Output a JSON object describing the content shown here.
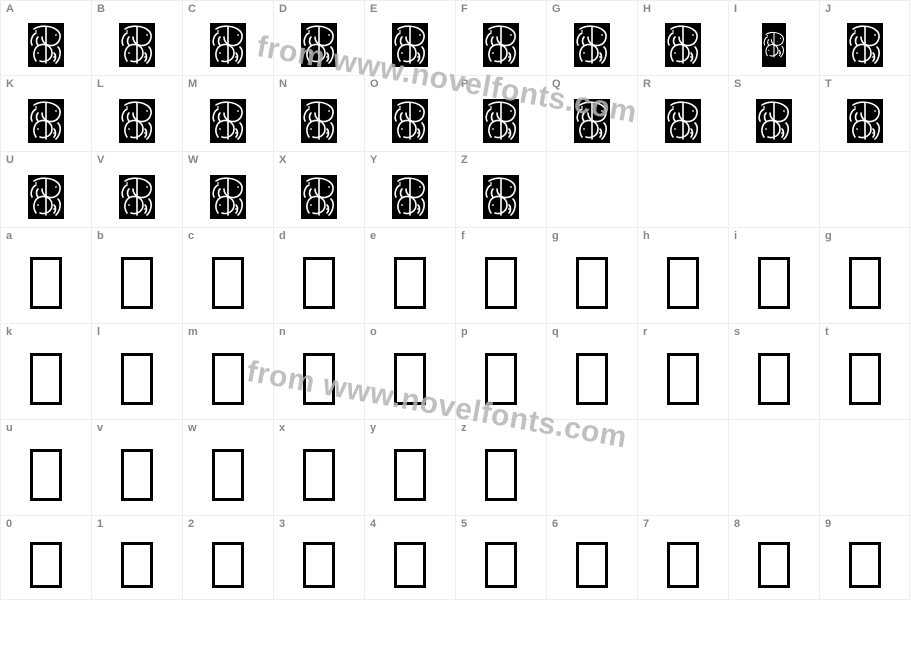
{
  "watermark_text": "from www.novelfonts.com",
  "colors": {
    "border": "#eeeeee",
    "label": "#888888",
    "glyph_bg": "#000000",
    "glyph_stroke": "#ffffff",
    "watermark": "#b6b6b6",
    "page_bg": "#ffffff"
  },
  "rows": [
    {
      "type": "upper",
      "cells": [
        {
          "label": "A",
          "glyph": "deco"
        },
        {
          "label": "B",
          "glyph": "deco"
        },
        {
          "label": "C",
          "glyph": "deco"
        },
        {
          "label": "D",
          "glyph": "deco"
        },
        {
          "label": "E",
          "glyph": "deco"
        },
        {
          "label": "F",
          "glyph": "deco"
        },
        {
          "label": "G",
          "glyph": "deco"
        },
        {
          "label": "H",
          "glyph": "deco"
        },
        {
          "label": "I",
          "glyph": "deco",
          "narrow": true
        },
        {
          "label": "J",
          "glyph": "deco"
        }
      ]
    },
    {
      "type": "upper",
      "cells": [
        {
          "label": "K",
          "glyph": "deco"
        },
        {
          "label": "L",
          "glyph": "deco"
        },
        {
          "label": "M",
          "glyph": "deco"
        },
        {
          "label": "N",
          "glyph": "deco"
        },
        {
          "label": "O",
          "glyph": "deco"
        },
        {
          "label": "P",
          "glyph": "deco"
        },
        {
          "label": "Q",
          "glyph": "deco"
        },
        {
          "label": "R",
          "glyph": "deco"
        },
        {
          "label": "S",
          "glyph": "deco"
        },
        {
          "label": "T",
          "glyph": "deco"
        }
      ]
    },
    {
      "type": "upper",
      "cells": [
        {
          "label": "U",
          "glyph": "deco"
        },
        {
          "label": "V",
          "glyph": "deco"
        },
        {
          "label": "W",
          "glyph": "deco"
        },
        {
          "label": "X",
          "glyph": "deco"
        },
        {
          "label": "Y",
          "glyph": "deco"
        },
        {
          "label": "Z",
          "glyph": "deco"
        },
        {
          "label": "",
          "glyph": "blank"
        },
        {
          "label": "",
          "glyph": "blank"
        },
        {
          "label": "",
          "glyph": "blank"
        },
        {
          "label": "",
          "glyph": "blank"
        }
      ]
    },
    {
      "type": "lower",
      "cells": [
        {
          "label": "a",
          "glyph": "box"
        },
        {
          "label": "b",
          "glyph": "box"
        },
        {
          "label": "c",
          "glyph": "box"
        },
        {
          "label": "d",
          "glyph": "box"
        },
        {
          "label": "e",
          "glyph": "box"
        },
        {
          "label": "f",
          "glyph": "box"
        },
        {
          "label": "g",
          "glyph": "box"
        },
        {
          "label": "h",
          "glyph": "box"
        },
        {
          "label": "i",
          "glyph": "box"
        },
        {
          "label": "g",
          "glyph": "box"
        }
      ]
    },
    {
      "type": "lower",
      "cells": [
        {
          "label": "k",
          "glyph": "box"
        },
        {
          "label": "l",
          "glyph": "box"
        },
        {
          "label": "m",
          "glyph": "box"
        },
        {
          "label": "n",
          "glyph": "box"
        },
        {
          "label": "o",
          "glyph": "box"
        },
        {
          "label": "p",
          "glyph": "box"
        },
        {
          "label": "q",
          "glyph": "box"
        },
        {
          "label": "r",
          "glyph": "box"
        },
        {
          "label": "s",
          "glyph": "box"
        },
        {
          "label": "t",
          "glyph": "box"
        }
      ]
    },
    {
      "type": "lower",
      "cells": [
        {
          "label": "u",
          "glyph": "box"
        },
        {
          "label": "v",
          "glyph": "box"
        },
        {
          "label": "w",
          "glyph": "box"
        },
        {
          "label": "x",
          "glyph": "box"
        },
        {
          "label": "y",
          "glyph": "box"
        },
        {
          "label": "z",
          "glyph": "box"
        },
        {
          "label": "",
          "glyph": "blank"
        },
        {
          "label": "",
          "glyph": "blank"
        },
        {
          "label": "",
          "glyph": "blank"
        },
        {
          "label": "",
          "glyph": "blank"
        }
      ]
    },
    {
      "type": "digit",
      "cells": [
        {
          "label": "0",
          "glyph": "box"
        },
        {
          "label": "1",
          "glyph": "box"
        },
        {
          "label": "2",
          "glyph": "box"
        },
        {
          "label": "3",
          "glyph": "box"
        },
        {
          "label": "4",
          "glyph": "box"
        },
        {
          "label": "5",
          "glyph": "box"
        },
        {
          "label": "6",
          "glyph": "box"
        },
        {
          "label": "7",
          "glyph": "box"
        },
        {
          "label": "8",
          "glyph": "box"
        },
        {
          "label": "9",
          "glyph": "box"
        }
      ]
    }
  ]
}
